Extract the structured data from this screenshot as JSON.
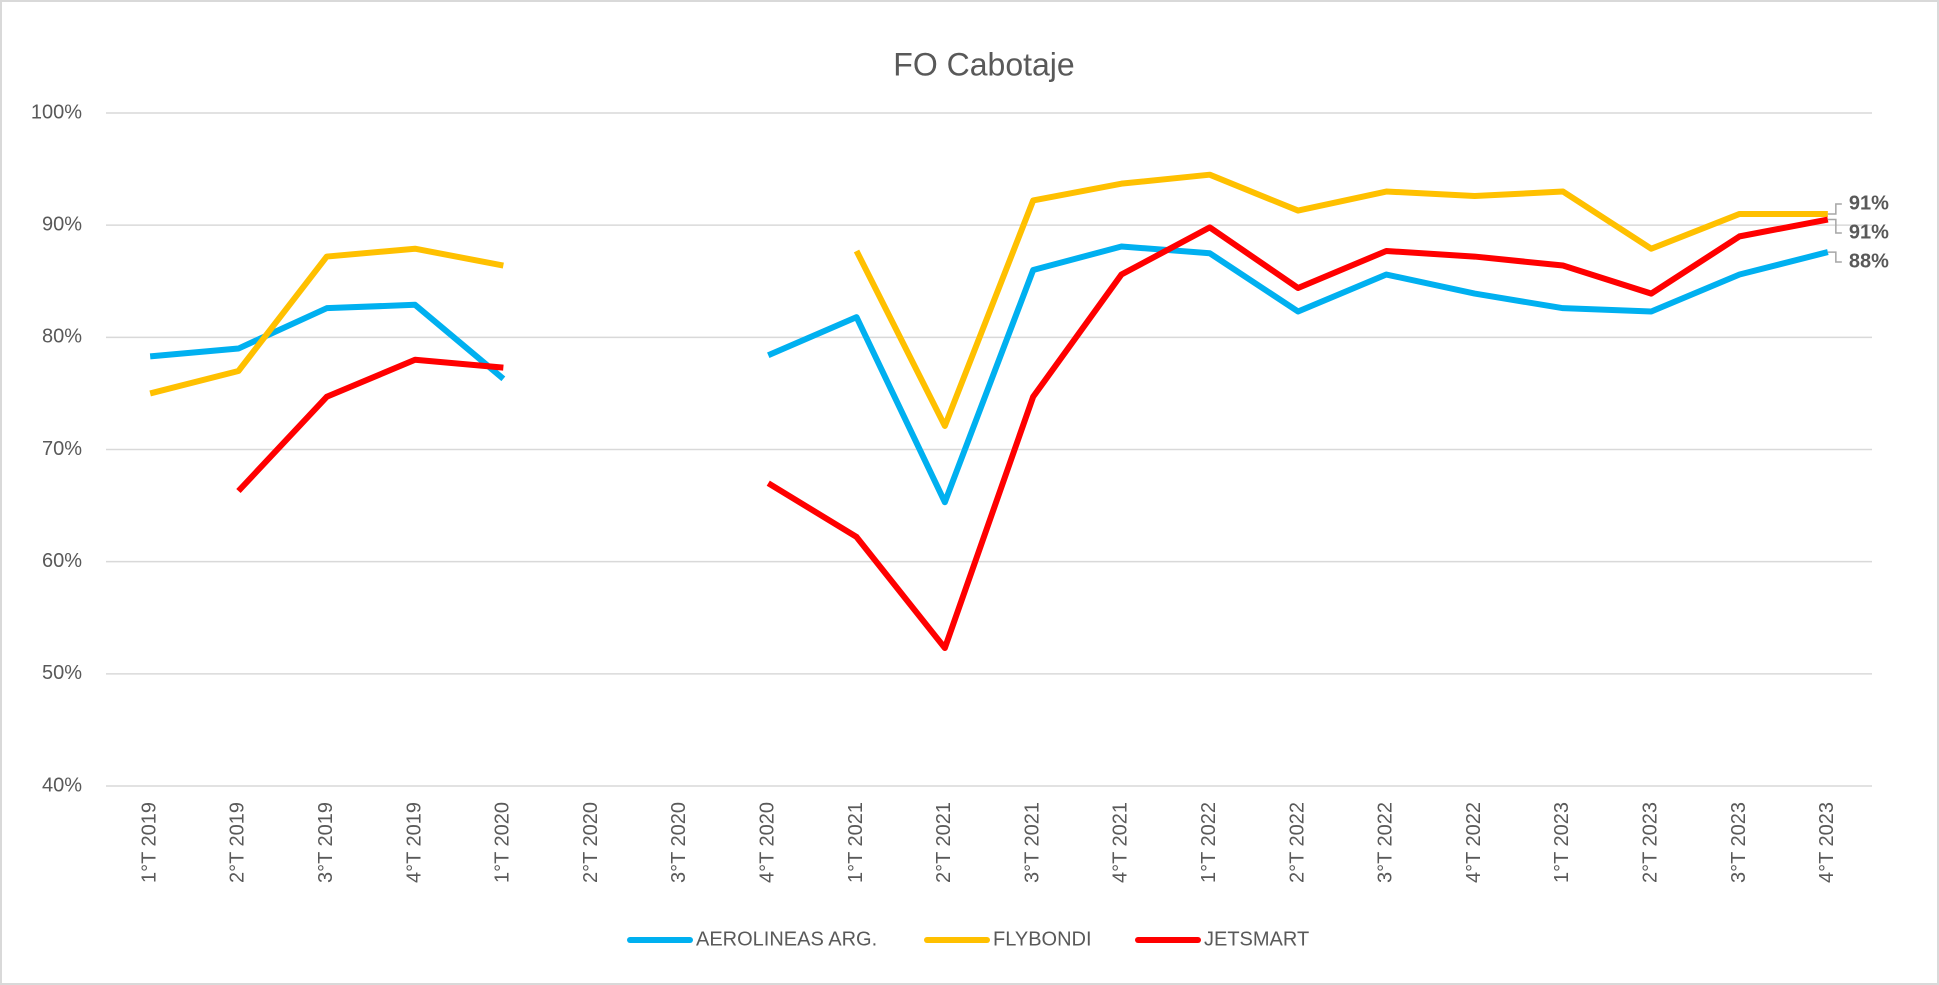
{
  "chart_data": {
    "type": "line",
    "title": "FO Cabotaje",
    "categories": [
      "1°T 2019",
      "2°T 2019",
      "3°T 2019",
      "4°T 2019",
      "1°T 2020",
      "2°T 2020",
      "3°T 2020",
      "4°T 2020",
      "1°T 2021",
      "2°T 2021",
      "3°T 2021",
      "4°T 2021",
      "1°T 2022",
      "2°T 2022",
      "3°T 2022",
      "4°T 2022",
      "1°T 2023",
      "2°T 2023",
      "3°T 2023",
      "4°T 2023"
    ],
    "series": [
      {
        "name": "AEROLINEAS ARG.",
        "color": "#00b0f0",
        "values": [
          78.3,
          79.0,
          82.6,
          82.9,
          76.3,
          null,
          null,
          78.4,
          81.8,
          65.3,
          86.0,
          88.1,
          87.5,
          82.3,
          85.6,
          83.9,
          82.6,
          82.3,
          85.6,
          87.6
        ],
        "value_labels": [
          null,
          null,
          null,
          null,
          null,
          null,
          null,
          null,
          null,
          null,
          null,
          null,
          null,
          null,
          null,
          null,
          null,
          null,
          null,
          "88%"
        ]
      },
      {
        "name": "FLYBONDI",
        "color": "#ffc000",
        "values": [
          75.0,
          77.0,
          87.2,
          87.9,
          86.4,
          null,
          null,
          null,
          87.7,
          72.1,
          92.2,
          93.7,
          94.5,
          91.3,
          93.0,
          92.6,
          93.0,
          87.9,
          91.0,
          91.0
        ],
        "value_labels": [
          null,
          null,
          null,
          null,
          null,
          null,
          null,
          null,
          null,
          null,
          null,
          null,
          null,
          null,
          null,
          null,
          null,
          null,
          null,
          "91%"
        ]
      },
      {
        "name": "JETSMART",
        "color": "#ff0000",
        "values": [
          null,
          66.3,
          74.7,
          78.0,
          77.3,
          null,
          null,
          67.0,
          62.2,
          52.3,
          74.7,
          85.6,
          89.8,
          84.4,
          87.7,
          87.2,
          86.4,
          83.9,
          89.0,
          90.5
        ],
        "value_labels": [
          null,
          null,
          null,
          null,
          null,
          null,
          null,
          null,
          null,
          null,
          null,
          null,
          null,
          null,
          null,
          null,
          null,
          null,
          null,
          "91%"
        ]
      }
    ],
    "ylim": [
      40,
      100
    ],
    "yticks": [
      {
        "value": 40,
        "label": "40%"
      },
      {
        "value": 50,
        "label": "50%"
      },
      {
        "value": 60,
        "label": "60%"
      },
      {
        "value": 70,
        "label": "70%"
      },
      {
        "value": 80,
        "label": "80%"
      },
      {
        "value": 90,
        "label": "90%"
      },
      {
        "value": 100,
        "label": "100%"
      }
    ],
    "grid": true,
    "legend": "bottom"
  }
}
